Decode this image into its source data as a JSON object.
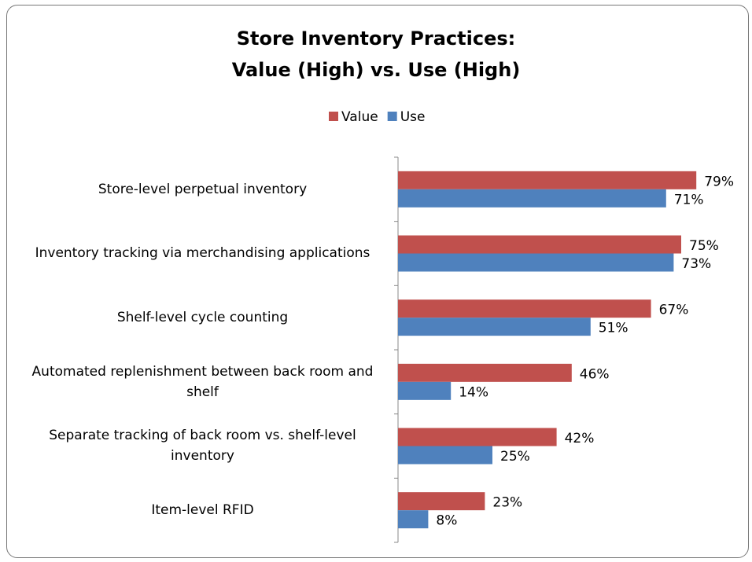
{
  "chart_data": {
    "type": "bar",
    "orientation": "horizontal",
    "title": [
      "Store Inventory Practices:",
      "Value (High) vs. Use (High)"
    ],
    "categories": [
      "Store-level perpetual inventory",
      "Inventory tracking via merchandising applications",
      "Shelf-level cycle counting",
      "Automated replenishment between back room and shelf",
      "Separate tracking of back room vs. shelf-level inventory",
      "Item-level RFID"
    ],
    "series": [
      {
        "name": "Value",
        "color": "#c0504d",
        "values": [
          79,
          75,
          67,
          46,
          42,
          23
        ],
        "value_labels": [
          "79%",
          "75%",
          "67%",
          "46%",
          "42%",
          "23%"
        ]
      },
      {
        "name": "Use",
        "color": "#4f81bd",
        "values": [
          71,
          73,
          51,
          14,
          25,
          8
        ],
        "value_labels": [
          "71%",
          "73%",
          "51%",
          "14%",
          "25%",
          "8%"
        ]
      }
    ],
    "legend": "top"
  }
}
